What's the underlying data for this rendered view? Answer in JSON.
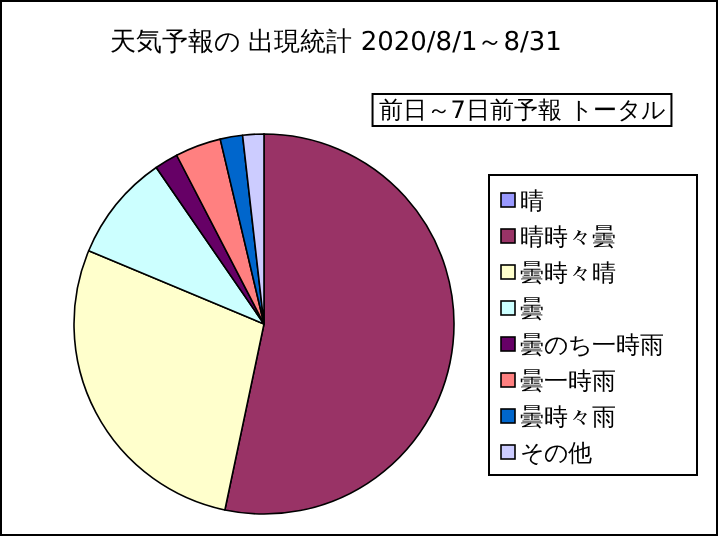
{
  "chart_data": {
    "type": "pie",
    "title": "天気予報の 出現統計 2020/8/1～8/31",
    "subtitle": "前日～7日前予報 トータル",
    "categories": [
      "晴",
      "晴時々曇",
      "曇時々晴",
      "曇",
      "曇のち一時雨",
      "曇一時雨",
      "曇時々雨",
      "その他"
    ],
    "values": [
      0,
      53.3,
      28.0,
      9.1,
      2.0,
      3.9,
      1.9,
      1.8
    ],
    "colors": [
      "#9999ff",
      "#993366",
      "#ffffcc",
      "#ccffff",
      "#660066",
      "#ff8080",
      "#0066cc",
      "#ccccff"
    ],
    "legend": "right"
  }
}
